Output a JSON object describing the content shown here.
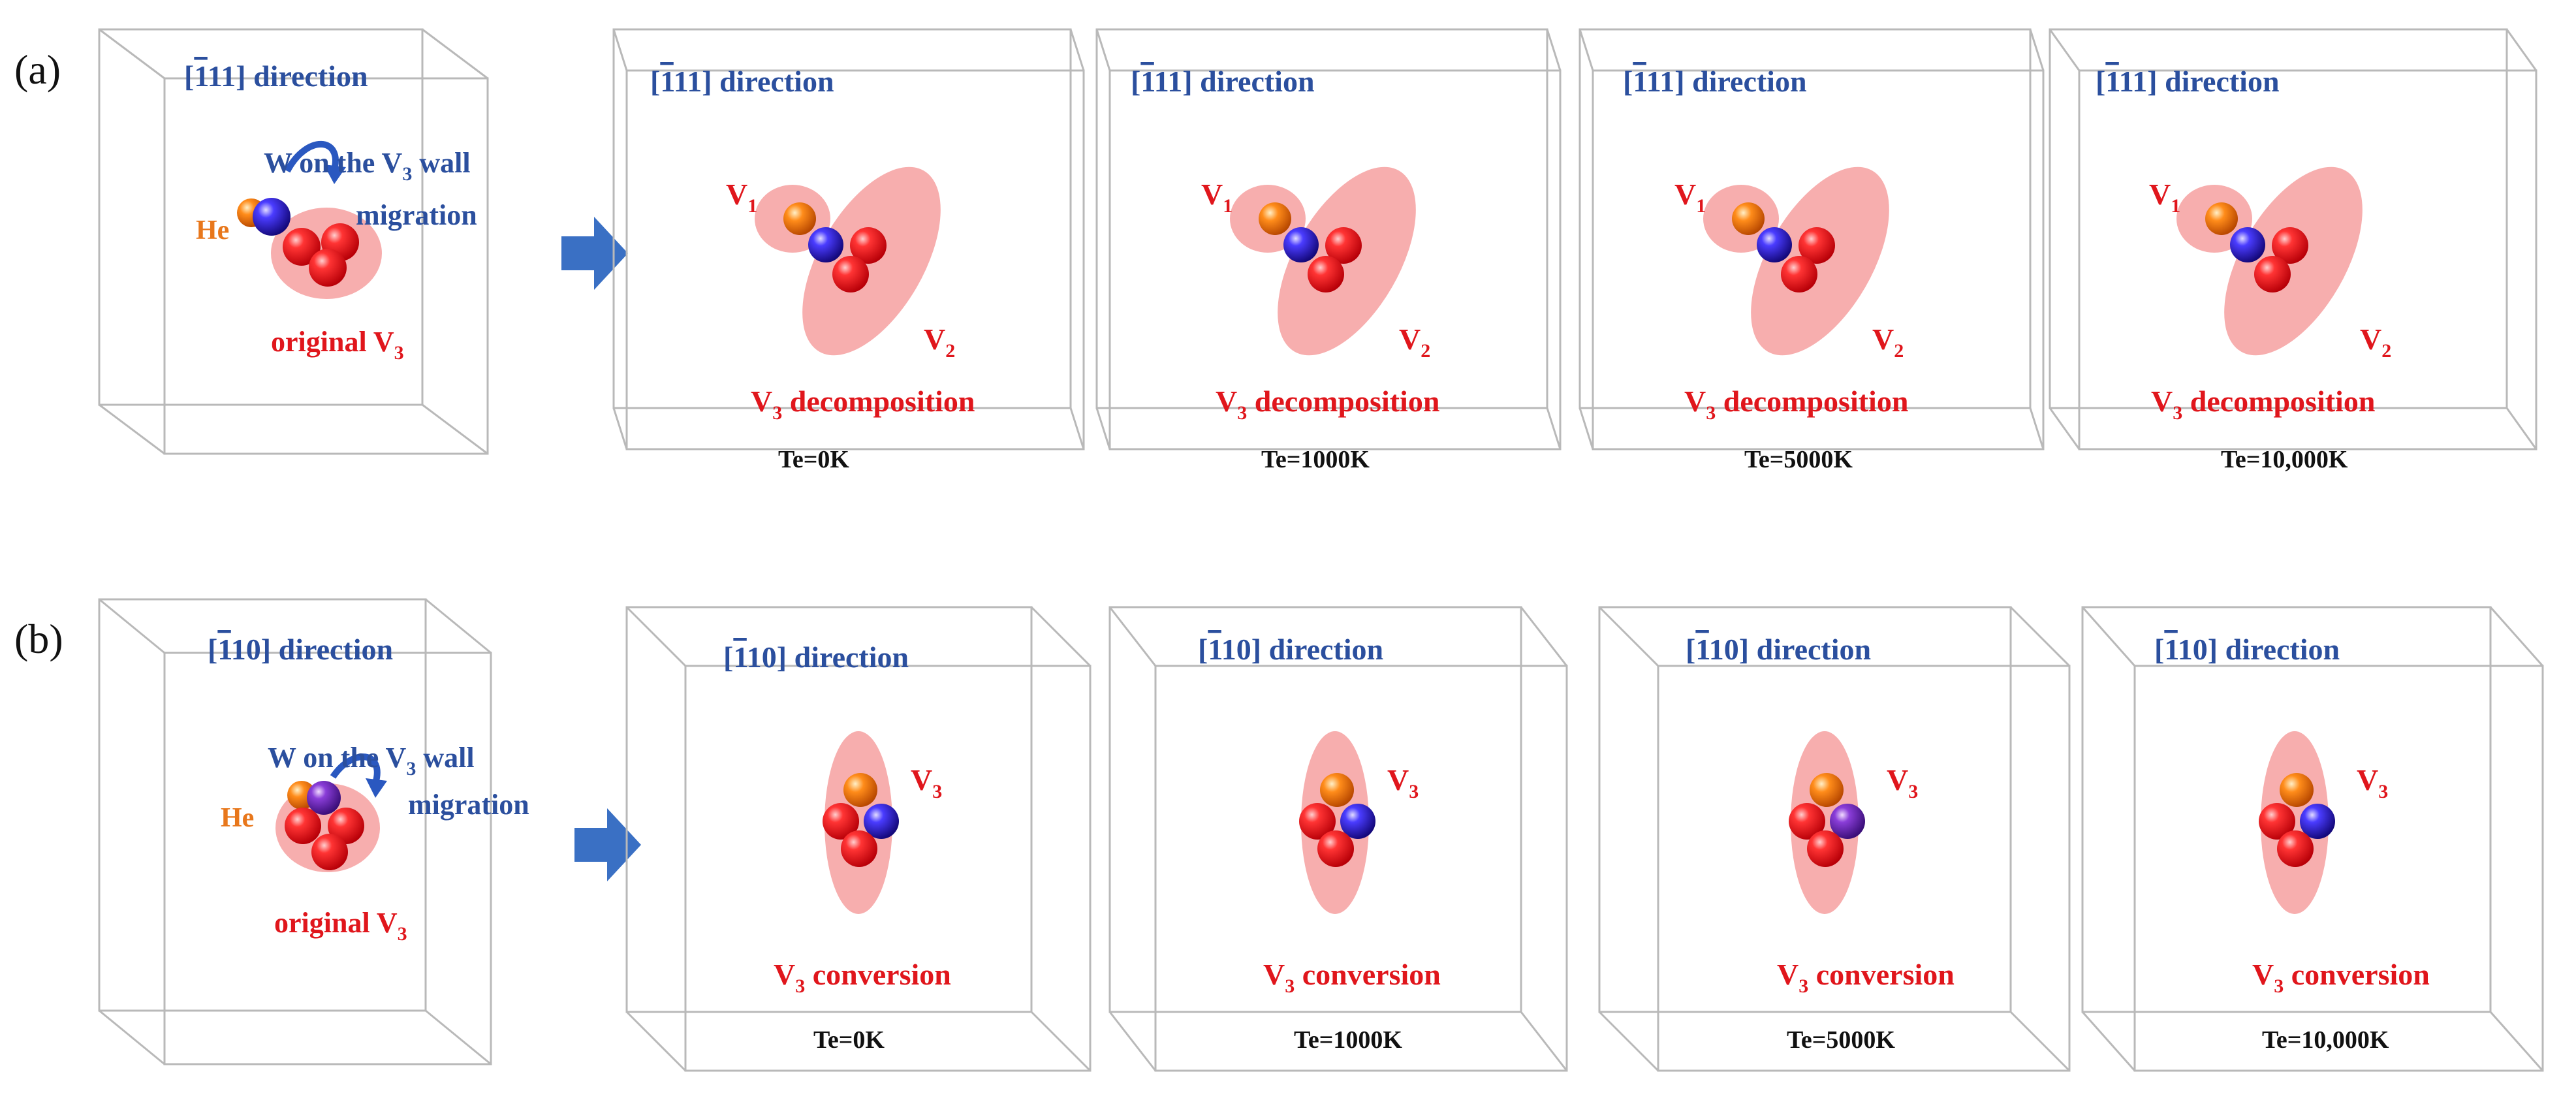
{
  "colors": {
    "direction_text": "#2b4f9e",
    "vacancy_text": "#e0161c",
    "he_text": "#e8771b",
    "temp_text": "#111111",
    "box_edge": "#b9b9b9",
    "halo": "#f48c8c",
    "arrow": "#3a70c4",
    "w_atom": "#2b1fd8",
    "he_atom": "#f0821c",
    "v_atom": "#e8141e"
  },
  "icons": {
    "process_arrow": "right-block-arrow",
    "migration_arrow": "curved-hop-arrow"
  },
  "row_a": {
    "label": "(a)",
    "direction_bracket": "[",
    "direction_bar": "1",
    "direction_rest": "11] direction",
    "original": {
      "he": "He",
      "w_line1_pre": "W on the V",
      "w_line1_sub": "3",
      "w_line1_post": " wall",
      "w_line2": "migration",
      "v_main": "original V",
      "v_sub": "3"
    },
    "result": {
      "v1_main": "V",
      "v1_sub": "1",
      "v2_main": "V",
      "v2_sub": "2",
      "caption_main": "V",
      "caption_sub": "3",
      "caption_rest": " decomposition"
    },
    "temps": [
      "Te=0K",
      "Te=1000K",
      "Te=5000K",
      "Te=10,000K"
    ]
  },
  "row_b": {
    "label": "(b)",
    "direction_bracket": "[",
    "direction_bar": "1",
    "direction_rest": "10] direction",
    "original": {
      "he": "He",
      "w_line1_pre": "W on the V",
      "w_line1_sub": "3",
      "w_line1_post": " wall",
      "w_line2": "migration",
      "v_main": "original V",
      "v_sub": "3"
    },
    "result": {
      "v3_main": "V",
      "v3_sub": "3",
      "caption_main": "V",
      "caption_sub": "3",
      "caption_rest": " conversion"
    },
    "temps": [
      "Te=0K",
      "Te=1000K",
      "Te=5000K",
      "Te=10,000K"
    ]
  }
}
